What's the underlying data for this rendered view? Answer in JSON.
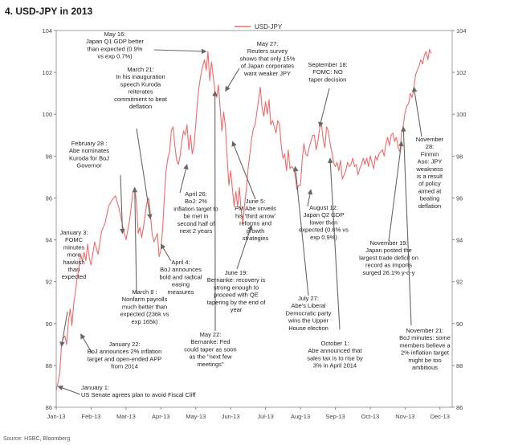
{
  "chart_data": {
    "type": "line",
    "title": "4. USD-JPY in 2013",
    "source": "Source: HSBC, Bloomberg",
    "series": [
      {
        "name": "USD-JPY",
        "color": "#f06a6a",
        "points": [
          [
            0.0,
            86.8
          ],
          [
            0.05,
            87.2
          ],
          [
            0.1,
            87.6
          ],
          [
            0.15,
            88.9
          ],
          [
            0.2,
            89.3
          ],
          [
            0.25,
            89.4
          ],
          [
            0.3,
            89.0
          ],
          [
            0.35,
            90.1
          ],
          [
            0.4,
            90.7
          ],
          [
            0.45,
            89.9
          ],
          [
            0.5,
            90.9
          ],
          [
            0.55,
            91.5
          ],
          [
            0.6,
            92.2
          ],
          [
            0.65,
            92.6
          ],
          [
            0.7,
            93.3
          ],
          [
            0.75,
            93.0
          ],
          [
            0.8,
            93.4
          ],
          [
            0.85,
            93.0
          ],
          [
            0.9,
            93.8
          ],
          [
            0.95,
            93.1
          ],
          [
            1.0,
            92.8
          ],
          [
            1.1,
            93.9
          ],
          [
            1.2,
            93.3
          ],
          [
            1.3,
            94.4
          ],
          [
            1.4,
            94.8
          ],
          [
            1.5,
            95.6
          ],
          [
            1.6,
            95.9
          ],
          [
            1.7,
            96.1
          ],
          [
            1.8,
            95.5
          ],
          [
            1.9,
            94.7
          ],
          [
            2.0,
            94.0
          ],
          [
            2.1,
            94.9
          ],
          [
            2.15,
            95.6
          ],
          [
            2.2,
            96.3
          ],
          [
            2.25,
            96.5
          ],
          [
            2.3,
            95.8
          ],
          [
            2.35,
            94.3
          ],
          [
            2.4,
            94.6
          ],
          [
            2.45,
            94.1
          ],
          [
            2.5,
            94.6
          ],
          [
            2.55,
            95.2
          ],
          [
            2.6,
            95.8
          ],
          [
            2.65,
            96.0
          ],
          [
            2.7,
            95.2
          ],
          [
            2.75,
            94.3
          ],
          [
            2.8,
            93.9
          ],
          [
            2.9,
            94.3
          ],
          [
            2.95,
            93.2
          ],
          [
            3.0,
            93.5
          ],
          [
            3.05,
            94.5
          ],
          [
            3.1,
            96.1
          ],
          [
            3.15,
            97.3
          ],
          [
            3.2,
            97.9
          ],
          [
            3.25,
            98.2
          ],
          [
            3.3,
            99.2
          ],
          [
            3.35,
            99.4
          ],
          [
            3.4,
            98.5
          ],
          [
            3.45,
            97.8
          ],
          [
            3.5,
            97.6
          ],
          [
            3.55,
            98.0
          ],
          [
            3.6,
            98.7
          ],
          [
            3.65,
            99.2
          ],
          [
            3.7,
            99.0
          ],
          [
            3.75,
            99.5
          ],
          [
            3.8,
            98.3
          ],
          [
            3.85,
            99.0
          ],
          [
            3.9,
            98.1
          ],
          [
            3.95,
            98.5
          ],
          [
            4.0,
            99.5
          ],
          [
            4.05,
            100.6
          ],
          [
            4.1,
            101.4
          ],
          [
            4.15,
            101.9
          ],
          [
            4.2,
            102.3
          ],
          [
            4.25,
            102.6
          ],
          [
            4.3,
            102.1
          ],
          [
            4.35,
            103.0
          ],
          [
            4.4,
            101.6
          ],
          [
            4.45,
            102.5
          ],
          [
            4.5,
            101.8
          ],
          [
            4.55,
            101.1
          ],
          [
            4.6,
            100.8
          ],
          [
            4.65,
            101.4
          ],
          [
            4.7,
            100.3
          ],
          [
            4.75,
            99.2
          ],
          [
            4.8,
            100.1
          ],
          [
            4.85,
            99.4
          ],
          [
            4.9,
            97.9
          ],
          [
            4.95,
            96.6
          ],
          [
            5.0,
            97.3
          ],
          [
            5.05,
            96.4
          ],
          [
            5.1,
            95.6
          ],
          [
            5.15,
            96.3
          ],
          [
            5.2,
            95.6
          ],
          [
            5.25,
            96.5
          ],
          [
            5.3,
            95.4
          ],
          [
            5.35,
            94.8
          ],
          [
            5.4,
            95.7
          ],
          [
            5.45,
            96.4
          ],
          [
            5.5,
            97.4
          ],
          [
            5.55,
            98.1
          ],
          [
            5.6,
            98.8
          ],
          [
            5.65,
            99.3
          ],
          [
            5.7,
            99.5
          ],
          [
            5.75,
            100.1
          ],
          [
            5.8,
            100.7
          ],
          [
            5.85,
            101.3
          ],
          [
            5.9,
            100.3
          ],
          [
            5.95,
            99.9
          ],
          [
            6.0,
            100.6
          ],
          [
            6.05,
            100.0
          ],
          [
            6.1,
            100.7
          ],
          [
            6.15,
            99.5
          ],
          [
            6.2,
            99.7
          ],
          [
            6.25,
            99.4
          ],
          [
            6.3,
            99.1
          ],
          [
            6.35,
            99.7
          ],
          [
            6.4,
            99.5
          ],
          [
            6.45,
            98.5
          ],
          [
            6.5,
            97.9
          ],
          [
            6.55,
            98.1
          ],
          [
            6.6,
            97.3
          ],
          [
            6.65,
            98.3
          ],
          [
            6.7,
            97.4
          ],
          [
            6.75,
            97.5
          ],
          [
            6.8,
            97.4
          ],
          [
            6.85,
            97.1
          ],
          [
            6.9,
            96.4
          ],
          [
            6.95,
            96.6
          ],
          [
            7.0,
            96.6
          ],
          [
            7.05,
            97.8
          ],
          [
            7.1,
            98.6
          ],
          [
            7.15,
            98.1
          ],
          [
            7.2,
            98.0
          ],
          [
            7.25,
            98.4
          ],
          [
            7.3,
            98.7
          ],
          [
            7.35,
            99.0
          ],
          [
            7.4,
            99.0
          ],
          [
            7.45,
            98.3
          ],
          [
            7.5,
            98.7
          ],
          [
            7.55,
            99.3
          ],
          [
            7.6,
            99.6
          ],
          [
            7.65,
            98.8
          ],
          [
            7.7,
            98.4
          ],
          [
            7.75,
            99.4
          ],
          [
            7.8,
            99.2
          ],
          [
            7.85,
            98.6
          ],
          [
            7.9,
            98.2
          ],
          [
            7.95,
            97.7
          ],
          [
            8.0,
            97.5
          ],
          [
            8.05,
            97.7
          ],
          [
            8.1,
            97.3
          ],
          [
            8.15,
            97.8
          ],
          [
            8.2,
            96.9
          ],
          [
            8.25,
            97.1
          ],
          [
            8.3,
            97.3
          ],
          [
            8.35,
            97.7
          ],
          [
            8.4,
            97.5
          ],
          [
            8.45,
            97.6
          ],
          [
            8.5,
            97.9
          ],
          [
            8.55,
            97.5
          ],
          [
            8.6,
            97.6
          ],
          [
            8.65,
            97.1
          ],
          [
            8.7,
            97.4
          ],
          [
            8.75,
            97.6
          ],
          [
            8.8,
            97.9
          ],
          [
            8.85,
            97.6
          ],
          [
            8.9,
            97.9
          ],
          [
            8.95,
            97.5
          ],
          [
            9.0,
            98.0
          ],
          [
            9.05,
            97.7
          ],
          [
            9.1,
            97.4
          ],
          [
            9.15,
            98.0
          ],
          [
            9.2,
            97.8
          ],
          [
            9.25,
            98.1
          ],
          [
            9.3,
            98.2
          ],
          [
            9.35,
            98.3
          ],
          [
            9.4,
            98.0
          ],
          [
            9.45,
            98.6
          ],
          [
            9.5,
            98.9
          ],
          [
            9.55,
            98.5
          ],
          [
            9.6,
            99.0
          ],
          [
            9.65,
            99.1
          ],
          [
            9.7,
            98.7
          ],
          [
            9.75,
            98.9
          ],
          [
            9.8,
            98.4
          ],
          [
            9.85,
            98.2
          ],
          [
            9.9,
            99.1
          ],
          [
            9.95,
            99.5
          ],
          [
            10.0,
            100.1
          ],
          [
            10.05,
            100.4
          ],
          [
            10.1,
            100.5
          ],
          [
            10.15,
            101.0
          ],
          [
            10.2,
            100.8
          ],
          [
            10.25,
            101.2
          ],
          [
            10.3,
            101.9
          ],
          [
            10.35,
            102.1
          ],
          [
            10.4,
            102.3
          ],
          [
            10.45,
            102.6
          ],
          [
            10.5,
            102.4
          ],
          [
            10.55,
            102.8
          ],
          [
            10.6,
            103.0
          ],
          [
            10.65,
            102.6
          ],
          [
            10.7,
            103.1
          ],
          [
            10.75,
            102.9
          ]
        ]
      }
    ],
    "xlabels": [
      "Jan-13",
      "Feb-13",
      "Mar-13",
      "Apr-13",
      "May-13",
      "Jun-13",
      "Jul-13",
      "Aug-13",
      "Sep-13",
      "Oct-13",
      "Nov-13",
      "Dec-13"
    ],
    "xlim": [
      0,
      11.35
    ],
    "ylim": [
      86,
      104
    ],
    "yticks": [
      86,
      88,
      90,
      92,
      94,
      96,
      98,
      100,
      102,
      104
    ],
    "legend": "top-center",
    "grid": false,
    "annotations": [
      {
        "id": "jan1",
        "lines": [
          "January 1:",
          "US Senate agrees plan to avoid Fiscal Cliff"
        ],
        "target": [
          0.05,
          87.0
        ]
      },
      {
        "id": "jan3",
        "lines": [
          "January 3:",
          "FOMC",
          "minutes",
          "more",
          "hawkish",
          "than",
          "expected"
        ],
        "target": [
          0.15,
          88.9
        ]
      },
      {
        "id": "jan22",
        "lines": [
          "January 22:",
          "BoJ announces 2% inflation",
          "target and open-ended APP",
          "from 2014"
        ],
        "target": [
          0.7,
          89.5
        ]
      },
      {
        "id": "feb28",
        "lines": [
          "February 28 :",
          "Abe nominates",
          "Kuroda for BoJ",
          "Governor"
        ],
        "target": [
          1.9,
          94.3
        ]
      },
      {
        "id": "mar8",
        "lines": [
          "March 8 :",
          "Nonfarm payrolls",
          "much better than",
          "expected (236k vs",
          "exp 165k)"
        ],
        "target": [
          2.25,
          96.5
        ]
      },
      {
        "id": "mar21",
        "lines": [
          "March 21:",
          "In his inauguration",
          "speech Kuroda",
          "reiterates",
          "commitment to beat",
          "deflation"
        ],
        "target": [
          2.7,
          95.0
        ]
      },
      {
        "id": "apr4",
        "lines": [
          "April 4:",
          "BoJ announces",
          "bold and radical",
          "easing",
          "measures"
        ],
        "target": [
          3.0,
          93.8
        ]
      },
      {
        "id": "apr26",
        "lines": [
          "April 26:",
          "BoJ: 2%",
          "inflation target to",
          "be met in",
          "second half of",
          "next 2 years"
        ],
        "target": [
          3.75,
          97.6
        ]
      },
      {
        "id": "may16",
        "lines": [
          "May 16:",
          "Japan Q1 GDP better",
          "than expected (0.9%",
          "vs exp 0.7%)"
        ],
        "target": [
          4.3,
          103.0
        ]
      },
      {
        "id": "may22",
        "lines": [
          "May 22:",
          "Bernanke: Fed",
          "could taper as soon",
          "as the \"next few",
          "meetings\""
        ],
        "target": [
          4.55,
          101.1
        ]
      },
      {
        "id": "may27",
        "lines": [
          "May 27:",
          "Reuters survey",
          "shows that only 15%",
          "of Japan corporates",
          "want weaker JPY"
        ],
        "target": [
          4.85,
          101.1
        ]
      },
      {
        "id": "jun5",
        "lines": [
          "June 5:",
          "PM Abe unveils",
          "his 'third arrow'",
          "reforms and",
          "growth",
          "strategies"
        ],
        "target": [
          5.05,
          98.7
        ]
      },
      {
        "id": "jun19",
        "lines": [
          "June 19:",
          "Bernanke: recovery is",
          "strong enough to",
          "proceed with QE",
          "tapering by the end of",
          "year"
        ],
        "target": [
          5.6,
          94.7
        ]
      },
      {
        "id": "jul27",
        "lines": [
          "July 27:",
          "Abe's Liberal",
          "Democratic party",
          "wins the Upper",
          "House election"
        ],
        "target": [
          6.85,
          97.5
        ]
      },
      {
        "id": "aug12",
        "lines": [
          "August 12:",
          "Japan Q2 GDP",
          "lower than",
          "expected (0.6% vs",
          "exp 0.9%)"
        ],
        "target": [
          7.3,
          96.4
        ]
      },
      {
        "id": "sep18",
        "lines": [
          "September 18:",
          "FOMC: NO",
          "taper decision"
        ],
        "target": [
          7.55,
          99.4
        ]
      },
      {
        "id": "oct1",
        "lines": [
          "October 1:",
          "Abe announced that",
          "sales tax is to rise by",
          "3% in April 2014"
        ],
        "target": [
          7.85,
          97.9
        ]
      },
      {
        "id": "nov19",
        "lines": [
          "November 19:",
          "Japan posted the",
          "largest trade deficit on",
          "record as imports",
          "surged 26.1% y-o-y"
        ],
        "target": [
          9.9,
          98.7
        ]
      },
      {
        "id": "nov21",
        "lines": [
          "November 21:",
          "BoJ minutes: some",
          "members believe a",
          "2% inflation target",
          "might be too",
          "ambitious"
        ],
        "target": [
          9.95,
          99.4
        ]
      },
      {
        "id": "nov28",
        "lines": [
          "November",
          "28:",
          "Finmin",
          "Aso: JPY",
          "weakness",
          "is a result",
          "of policy",
          "aimed at",
          "beating",
          "deflation"
        ],
        "target": [
          10.25,
          101.3
        ]
      }
    ]
  }
}
